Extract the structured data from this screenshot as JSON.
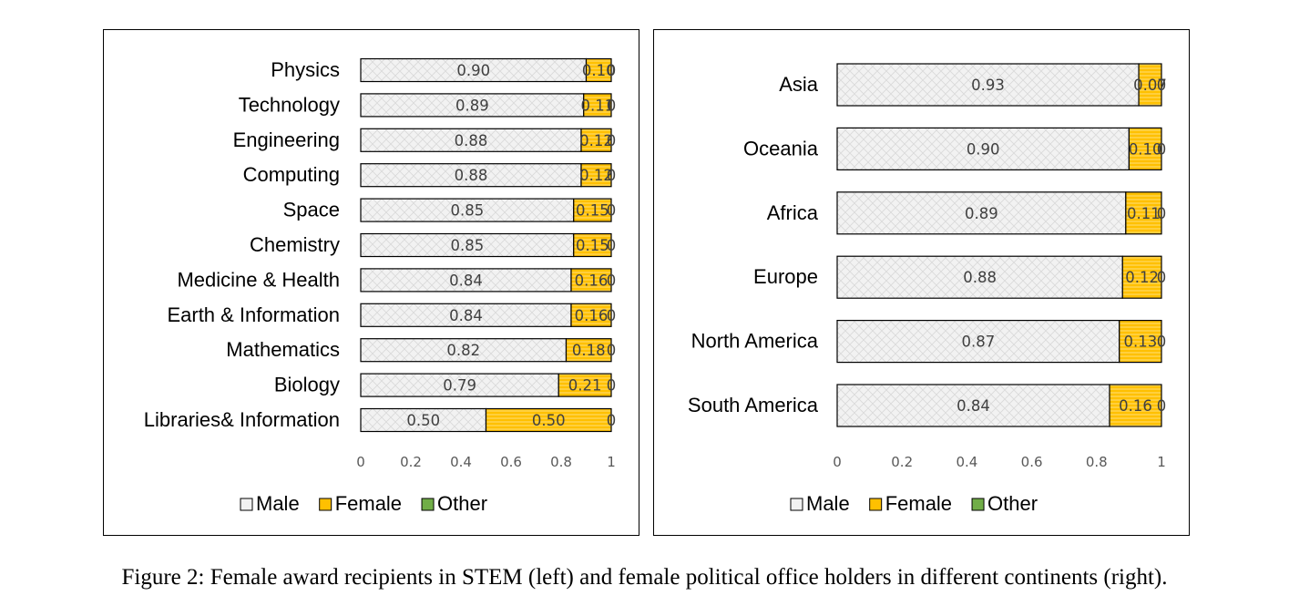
{
  "caption": "Figure 2: Female award recipients in STEM (left) and female political office holders in different continents (right).",
  "colors": {
    "male": "#f2f2f2",
    "male_hatch": "#d9d9d9",
    "female": "#ffc000",
    "female_stripe": "#ffe699",
    "other": "#70ad47",
    "outline": "#000000"
  },
  "chart_data": [
    {
      "type": "bar",
      "orientation": "horizontal",
      "stacked": true,
      "categories": [
        "Physics",
        "Technology",
        "Engineering",
        "Computing",
        "Space",
        "Chemistry",
        "Medicine & Health",
        "Earth & Information",
        "Mathematics",
        "Biology",
        "Libraries& Information"
      ],
      "series": [
        {
          "name": "Male",
          "values": [
            0.9,
            0.89,
            0.88,
            0.88,
            0.85,
            0.85,
            0.84,
            0.84,
            0.82,
            0.79,
            0.5
          ],
          "labels": [
            "0.90",
            "0.89",
            "0.88",
            "0.88",
            "0.85",
            "0.85",
            "0.84",
            "0.84",
            "0.82",
            "0.79",
            "0.50"
          ]
        },
        {
          "name": "Female",
          "values": [
            0.1,
            0.11,
            0.12,
            0.12,
            0.15,
            0.15,
            0.16,
            0.16,
            0.18,
            0.21,
            0.5
          ],
          "labels": [
            "0.10",
            "0.11",
            "0.12",
            "0.12",
            "0.15",
            "0.15",
            "0.16",
            "0.16",
            "0.18",
            "0.21",
            "0.50"
          ]
        },
        {
          "name": "Other",
          "values": [
            0,
            0,
            0,
            0,
            0,
            0,
            0,
            0,
            0,
            0,
            0
          ],
          "labels": [
            "0",
            "0",
            "0",
            "0",
            "0",
            "0",
            "0",
            "0",
            "0",
            "0",
            "0"
          ]
        }
      ],
      "xlim": [
        0,
        1
      ],
      "xticks": [
        "0",
        "0.2",
        "0.4",
        "0.6",
        "0.8",
        "1"
      ],
      "legend_position": "bottom"
    },
    {
      "type": "bar",
      "orientation": "horizontal",
      "stacked": true,
      "categories": [
        "Asia",
        "Oceania",
        "Africa",
        "Europe",
        "North America",
        "South America"
      ],
      "series": [
        {
          "name": "Male",
          "values": [
            0.93,
            0.9,
            0.89,
            0.88,
            0.87,
            0.84
          ],
          "labels": [
            "0.93",
            "0.90",
            "0.89",
            "0.88",
            "0.87",
            "0.84"
          ]
        },
        {
          "name": "Female",
          "values": [
            0.07,
            0.1,
            0.11,
            0.12,
            0.13,
            0.16
          ],
          "labels": [
            "0.07",
            "0.10",
            "0.11",
            "0.12",
            "0.13",
            "0.16"
          ]
        },
        {
          "name": "Other",
          "values": [
            0,
            0,
            0,
            0,
            0,
            0
          ],
          "labels": [
            "0",
            "0",
            "0",
            "0",
            "0",
            "0"
          ]
        }
      ],
      "xlim": [
        0,
        1
      ],
      "xticks": [
        "0",
        "0.2",
        "0.4",
        "0.6",
        "0.8",
        "1"
      ],
      "legend_position": "bottom"
    }
  ]
}
